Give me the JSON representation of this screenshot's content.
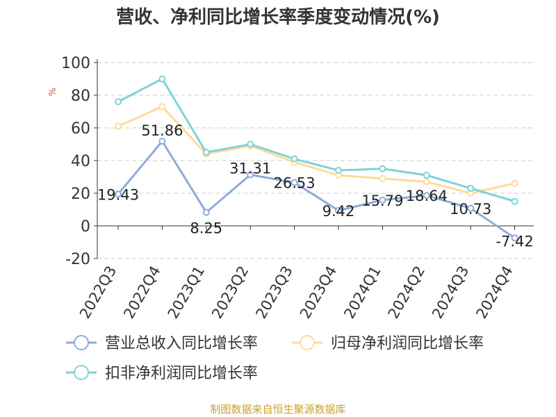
{
  "chart_data": {
    "type": "line",
    "title": "营收、净利同比增长率季度变动情况(%)",
    "ylabel": "%",
    "xlabel": "",
    "ylim": [
      -20,
      100
    ],
    "yticks": [
      100,
      80,
      60,
      40,
      20,
      0,
      -20
    ],
    "grid": true,
    "legend_position": "bottom",
    "categories": [
      "2022Q3",
      "2022Q4",
      "2023Q1",
      "2023Q2",
      "2023Q3",
      "2023Q4",
      "2024Q1",
      "2024Q2",
      "2024Q3",
      "2024Q4"
    ],
    "series": [
      {
        "name": "营业总收入同比增长率",
        "color": "#8eaadb",
        "values": [
          19.43,
          51.86,
          8.25,
          31.31,
          26.53,
          9.42,
          15.79,
          18.64,
          10.73,
          -7.42
        ],
        "labels": [
          "19.43",
          "51.86",
          "8.25",
          "31.31",
          "26.53",
          "9.42",
          "15.79",
          "18.64",
          "10.73",
          "-7.42"
        ]
      },
      {
        "name": "归母净利润同比增长率",
        "color": "#fddc98",
        "values": [
          61,
          73,
          44,
          49,
          39,
          31,
          29,
          27,
          20,
          26
        ]
      },
      {
        "name": "扣非净利润同比增长率",
        "color": "#7fd3d3",
        "values": [
          76,
          90,
          45,
          50,
          41,
          34,
          35,
          31,
          23,
          15
        ]
      }
    ]
  },
  "source": "制图数据来自恒生聚源数据库"
}
